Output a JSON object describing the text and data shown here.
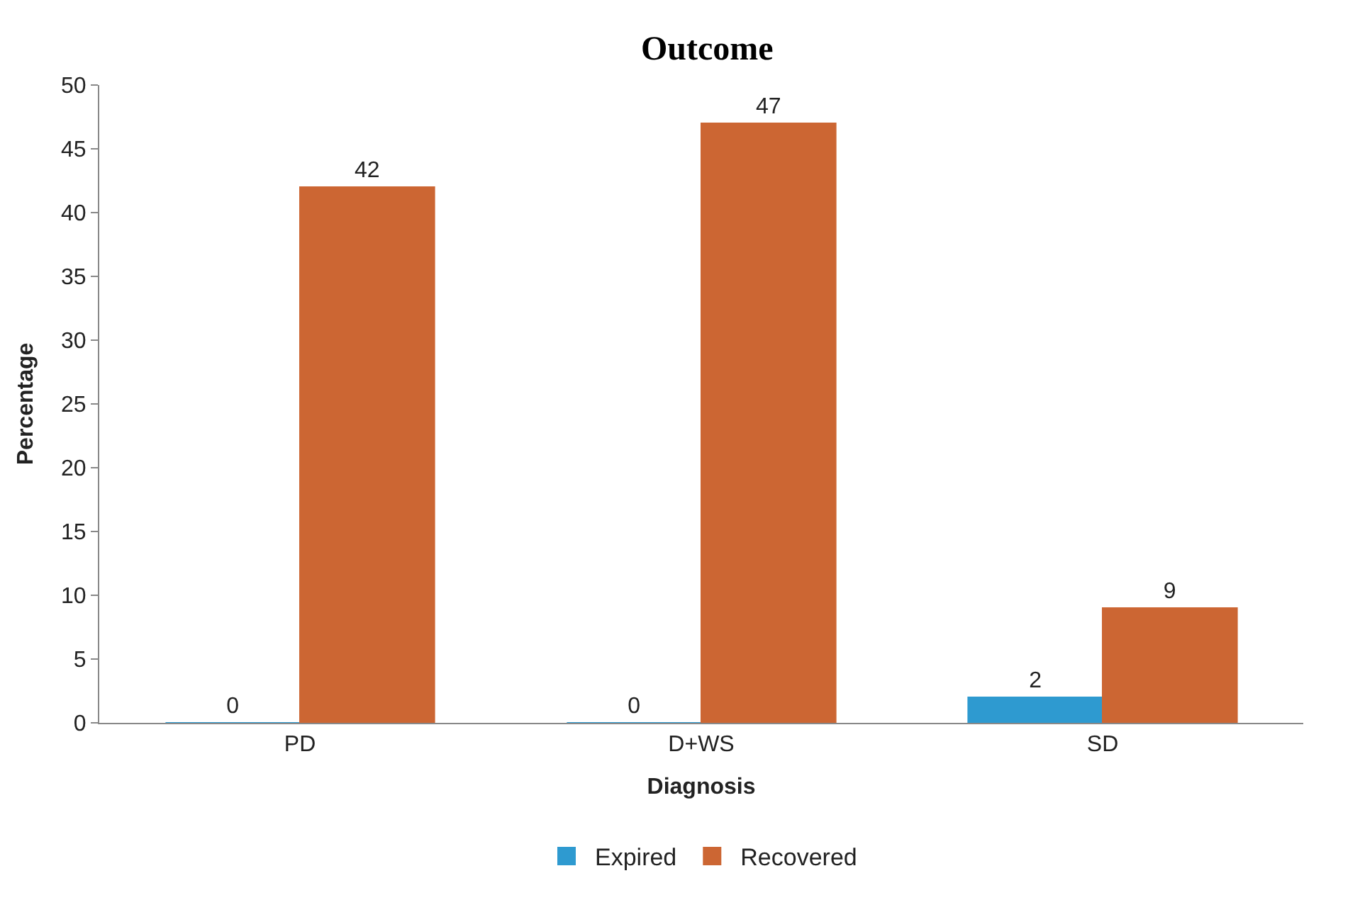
{
  "chart_data": {
    "type": "bar",
    "title": "Outcome",
    "xlabel": "Diagnosis",
    "ylabel": "Percentage",
    "categories": [
      "PD",
      "D+WS",
      "SD"
    ],
    "series": [
      {
        "name": "Expired",
        "color": "#2e9ad0",
        "values": [
          0,
          0,
          2
        ]
      },
      {
        "name": "Recovered",
        "color": "#cc6633",
        "values": [
          42,
          47,
          9
        ]
      }
    ],
    "ylim": [
      0,
      50
    ],
    "yticks": [
      0,
      5,
      10,
      15,
      20,
      25,
      30,
      35,
      40,
      45,
      50
    ],
    "grid": false,
    "legend": "bottom",
    "data_labels": true
  }
}
